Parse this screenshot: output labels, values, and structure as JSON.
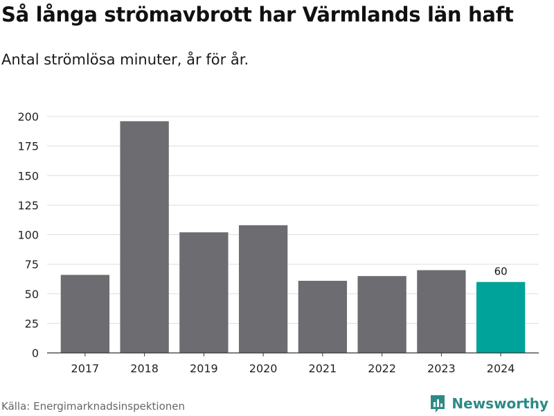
{
  "title": "Så långa strömavbrott har Värmlands län haft",
  "subtitle": "Antal strömlösa minuter, år för år.",
  "source": "Källa: Energimarknadsinspektionen",
  "brand": "Newsworthy",
  "colors": {
    "bar": "#6d6c71",
    "highlight": "#00a39a",
    "grid": "#dddddd",
    "axis": "#333333",
    "brand": "#2e8a86"
  },
  "chart_data": {
    "type": "bar",
    "title": "Så långa strömavbrott har Värmlands län haft",
    "subtitle": "Antal strömlösa minuter, år för år.",
    "xlabel": "",
    "ylabel": "",
    "categories": [
      "2017",
      "2018",
      "2019",
      "2020",
      "2021",
      "2022",
      "2023",
      "2024"
    ],
    "values": [
      66,
      196,
      102,
      108,
      61,
      65,
      70,
      60
    ],
    "highlight_index": 7,
    "data_labels": [
      {
        "index": 7,
        "text": "60"
      }
    ],
    "ylim": [
      0,
      200
    ],
    "yticks": [
      0,
      25,
      50,
      75,
      100,
      125,
      150,
      175,
      200
    ],
    "grid": true
  }
}
